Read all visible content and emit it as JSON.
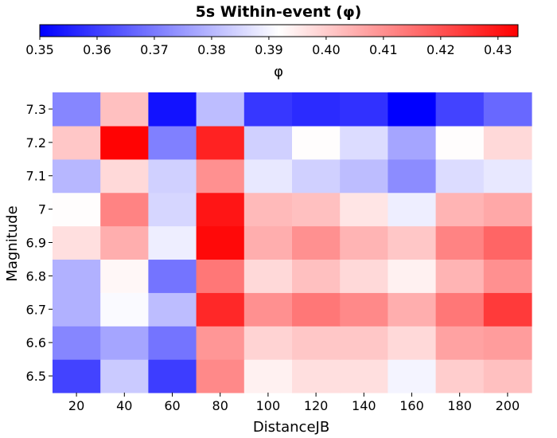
{
  "chart_data": {
    "type": "heatmap",
    "title": "5s Within-event (φ)",
    "xlabel": "DistanceJB",
    "ylabel": "Magnitude",
    "x_categories": [
      "20",
      "40",
      "60",
      "80",
      "100",
      "120",
      "140",
      "160",
      "180",
      "200"
    ],
    "y_categories": [
      "6.5",
      "6.6",
      "6.7",
      "6.8",
      "6.9",
      "7",
      "7.1",
      "7.2",
      "7.3"
    ],
    "values": [
      [
        0.361,
        0.383,
        0.36,
        0.411,
        0.394,
        0.397,
        0.397,
        0.39,
        0.4,
        0.402
      ],
      [
        0.372,
        0.377,
        0.369,
        0.409,
        0.399,
        0.401,
        0.401,
        0.398,
        0.407,
        0.408
      ],
      [
        0.379,
        0.391,
        0.381,
        0.427,
        0.41,
        0.414,
        0.411,
        0.405,
        0.414,
        0.424
      ],
      [
        0.379,
        0.393,
        0.369,
        0.414,
        0.398,
        0.402,
        0.398,
        0.394,
        0.404,
        0.41
      ],
      [
        0.397,
        0.405,
        0.389,
        0.432,
        0.405,
        0.41,
        0.404,
        0.401,
        0.412,
        0.417
      ],
      [
        0.392,
        0.412,
        0.385,
        0.43,
        0.403,
        0.402,
        0.396,
        0.389,
        0.404,
        0.406
      ],
      [
        0.38,
        0.398,
        0.384,
        0.41,
        0.388,
        0.384,
        0.381,
        0.373,
        0.386,
        0.388
      ],
      [
        0.401,
        0.433,
        0.371,
        0.428,
        0.384,
        0.392,
        0.386,
        0.377,
        0.392,
        0.398
      ],
      [
        0.372,
        0.402,
        0.353,
        0.381,
        0.359,
        0.357,
        0.358,
        0.35,
        0.361,
        0.367
      ]
    ],
    "colorbar": {
      "label": "φ",
      "min": 0.35,
      "max": 0.4335,
      "ticks": [
        "0.35",
        "0.36",
        "0.37",
        "0.38",
        "0.39",
        "0.40",
        "0.41",
        "0.42",
        "0.43"
      ],
      "colormap": "bwr",
      "low_color": "#0000ff",
      "mid_color": "#ffffff",
      "high_color": "#ff0000"
    }
  }
}
